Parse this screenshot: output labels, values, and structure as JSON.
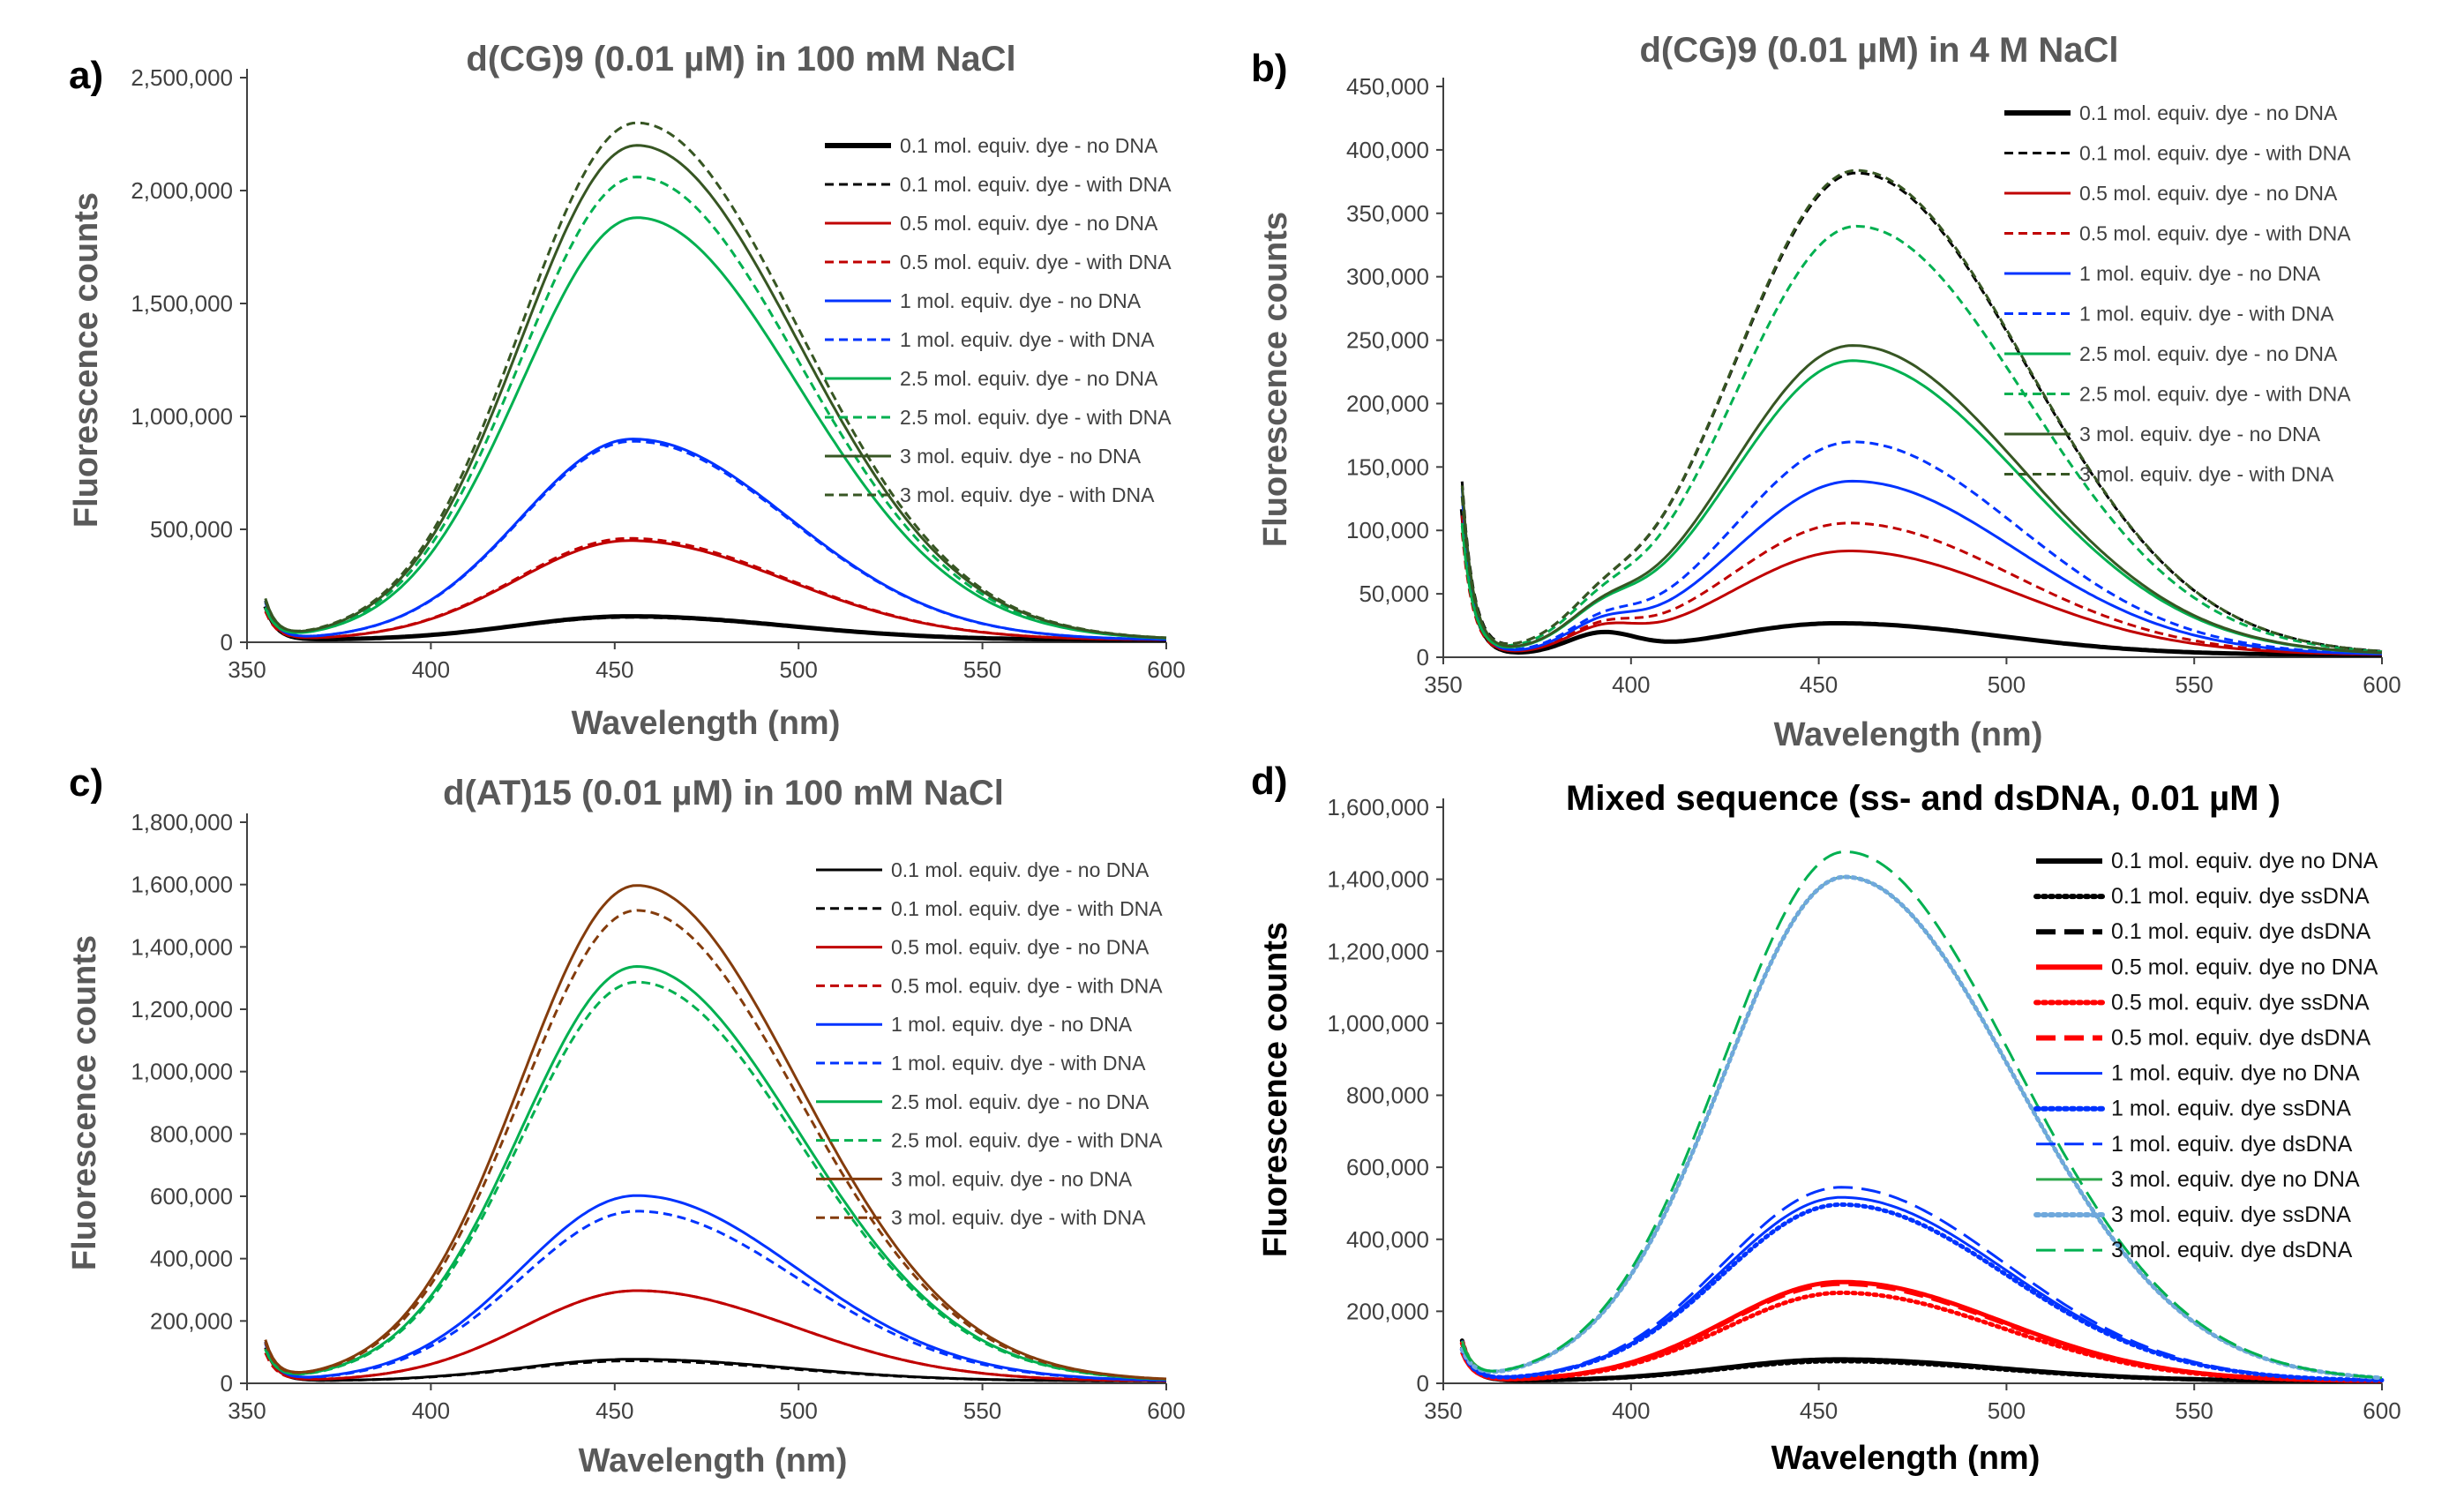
{
  "chart_data": [
    {
      "panel": "a)",
      "type": "line",
      "title": "d(CG)9 (0.01 µM) in 100 mM NaCl",
      "xlabel": "Wavelength (nm)",
      "ylabel": "Fluorescence counts",
      "xlim": [
        350,
        600
      ],
      "ylim": [
        0,
        2500000
      ],
      "xticks": [
        350,
        400,
        450,
        500,
        550,
        600
      ],
      "yticks": [
        0,
        500000,
        1000000,
        1500000,
        2000000,
        2500000
      ],
      "xtick_labels": [
        "350",
        "400",
        "450",
        "500",
        "550",
        "600"
      ],
      "ytick_labels": [
        "0",
        "500,000",
        "1,000,000",
        "1,500,000",
        "2,000,000",
        "2,500,000"
      ],
      "legend_position": "top-right",
      "title_color": "#595959",
      "label_color": "#595959",
      "series": [
        {
          "name": "0.1 mol. equiv. dye - no DNA",
          "color": "#000000",
          "dash": "solid",
          "width": "thick",
          "peak": 105000,
          "center": 454,
          "sigma": 36,
          "base": 0
        },
        {
          "name": "0.1 mol. equiv. dye - with DNA",
          "color": "#000000",
          "dash": "dashed",
          "width": "normal",
          "peak": 100000,
          "center": 454,
          "sigma": 36,
          "base": 0
        },
        {
          "name": "0.5 mol. equiv. dye - no DNA",
          "color": "#C00000",
          "dash": "solid",
          "width": "normal",
          "peak": 440000,
          "center": 454,
          "sigma": 36,
          "base": 0
        },
        {
          "name": "0.5 mol. equiv. dye - with DNA",
          "color": "#C00000",
          "dash": "dashed",
          "width": "normal",
          "peak": 450000,
          "center": 454,
          "sigma": 36,
          "base": 0
        },
        {
          "name": "1 mol. equiv. dye - no DNA",
          "color": "#0033FF",
          "dash": "solid",
          "width": "normal",
          "peak": 890000,
          "center": 455,
          "sigma": 36,
          "base": 0
        },
        {
          "name": "1 mol. equiv. dye - with DNA",
          "color": "#0033FF",
          "dash": "dashed",
          "width": "normal",
          "peak": 880000,
          "center": 455,
          "sigma": 36,
          "base": 0
        },
        {
          "name": "2.5 mol. equiv. dye - no DNA",
          "color": "#00B050",
          "dash": "solid",
          "width": "normal",
          "peak": 1870000,
          "center": 456,
          "sigma": 37,
          "base": 0
        },
        {
          "name": "2.5 mol. equiv. dye - with DNA",
          "color": "#00B050",
          "dash": "dashed",
          "width": "normal",
          "peak": 2050000,
          "center": 456,
          "sigma": 37,
          "base": 0
        },
        {
          "name": "3 mol. equiv. dye - no DNA",
          "color": "#375623",
          "dash": "solid",
          "width": "normal",
          "peak": 2190000,
          "center": 456,
          "sigma": 37,
          "base": 0
        },
        {
          "name": "3 mol. equiv. dye - with DNA",
          "color": "#375623",
          "dash": "dashed",
          "width": "normal",
          "peak": 2290000,
          "center": 456,
          "sigma": 37,
          "base": 0
        }
      ]
    },
    {
      "panel": "b)",
      "type": "line",
      "title": "d(CG)9 (0.01 µM) in 4 M NaCl",
      "xlabel": "Wavelength (nm)",
      "ylabel": "Fluorescence counts",
      "xlim": [
        350,
        600
      ],
      "ylim": [
        0,
        450000
      ],
      "xticks": [
        350,
        400,
        450,
        500,
        550,
        600
      ],
      "yticks": [
        0,
        50000,
        100000,
        150000,
        200000,
        250000,
        300000,
        350000,
        400000,
        450000
      ],
      "xtick_labels": [
        "350",
        "400",
        "450",
        "500",
        "550",
        "600"
      ],
      "ytick_labels": [
        "0",
        "50,000",
        "100,000",
        "150,000",
        "200,000",
        "250,000",
        "300,000",
        "350,000",
        "400,000",
        "450,000"
      ],
      "legend_position": "top-right",
      "title_color": "#595959",
      "label_color": "#595959",
      "series": [
        {
          "name": "0.1 mol. equiv. dye - no DNA",
          "color": "#000000",
          "dash": "solid",
          "width": "thick",
          "peak": 25000,
          "center": 455,
          "sigma": 36,
          "base": 15000
        },
        {
          "name": "0.1 mol. equiv. dye - with DNA",
          "color": "#000000",
          "dash": "dashed",
          "width": "normal",
          "peak": 380000,
          "center": 460,
          "sigma": 38,
          "base": 17000
        },
        {
          "name": "0.5 mol. equiv. dye - no DNA",
          "color": "#C00000",
          "dash": "solid",
          "width": "normal",
          "peak": 82000,
          "center": 458,
          "sigma": 37,
          "base": 15000
        },
        {
          "name": "0.5 mol. equiv. dye - with DNA",
          "color": "#C00000",
          "dash": "dashed",
          "width": "normal",
          "peak": 104000,
          "center": 458,
          "sigma": 37,
          "base": 15000
        },
        {
          "name": "1 mol. equiv. dye - no DNA",
          "color": "#0033FF",
          "dash": "solid",
          "width": "normal",
          "peak": 137000,
          "center": 459,
          "sigma": 37,
          "base": 16000
        },
        {
          "name": "1 mol. equiv. dye - with DNA",
          "color": "#0033FF",
          "dash": "dashed",
          "width": "normal",
          "peak": 168000,
          "center": 459,
          "sigma": 37,
          "base": 16000
        },
        {
          "name": "2.5 mol. equiv. dye - no DNA",
          "color": "#00B050",
          "dash": "solid",
          "width": "normal",
          "peak": 232000,
          "center": 459,
          "sigma": 38,
          "base": 17000
        },
        {
          "name": "2.5 mol. equiv. dye - with DNA",
          "color": "#00B050",
          "dash": "dashed",
          "width": "normal",
          "peak": 338000,
          "center": 460,
          "sigma": 38,
          "base": 17000
        },
        {
          "name": "3 mol. equiv. dye - no DNA",
          "color": "#375623",
          "dash": "solid",
          "width": "normal",
          "peak": 244000,
          "center": 459,
          "sigma": 38,
          "base": 17000
        },
        {
          "name": "3 mol. equiv. dye - with DNA",
          "color": "#375623",
          "dash": "dashed",
          "width": "normal",
          "peak": 382000,
          "center": 460,
          "sigma": 38,
          "base": 17000
        }
      ]
    },
    {
      "panel": "c)",
      "type": "line",
      "title": "d(AT)15 (0.01 µM) in 100 mM NaCl",
      "xlabel": "Wavelength (nm)",
      "ylabel": "Fluorescence counts",
      "xlim": [
        350,
        600
      ],
      "ylim": [
        0,
        1800000
      ],
      "xticks": [
        350,
        400,
        450,
        500,
        550,
        600
      ],
      "yticks": [
        0,
        200000,
        400000,
        600000,
        800000,
        1000000,
        1200000,
        1400000,
        1600000,
        1800000
      ],
      "xtick_labels": [
        "350",
        "400",
        "450",
        "500",
        "550",
        "600"
      ],
      "ytick_labels": [
        "0",
        "200,000",
        "400,000",
        "600,000",
        "800,000",
        "1,000,000",
        "1,200,000",
        "1,400,000",
        "1,600,000",
        "1,800,000"
      ],
      "legend_position": "top-right",
      "title_color": "#595959",
      "label_color": "#595959",
      "series": [
        {
          "name": "0.1 mol. equiv. dye - no DNA",
          "color": "#000000",
          "dash": "solid",
          "width": "normal",
          "peak": 70000,
          "center": 455,
          "sigma": 36,
          "base": 0
        },
        {
          "name": "0.1 mol. equiv. dye - with DNA",
          "color": "#000000",
          "dash": "dashed",
          "width": "normal",
          "peak": 65000,
          "center": 455,
          "sigma": 36,
          "base": 0
        },
        {
          "name": "0.5 mol. equiv. dye - no DNA",
          "color": "#C00000",
          "dash": "solid",
          "width": "normal",
          "peak": 290000,
          "center": 456,
          "sigma": 36,
          "base": 0
        },
        {
          "name": "0.5 mol. equiv. dye - with DNA",
          "color": "#C00000",
          "dash": "dashed",
          "width": "normal",
          "peak": 290000,
          "center": 456,
          "sigma": 36,
          "base": 0
        },
        {
          "name": "1 mol. equiv. dye - no DNA",
          "color": "#0033FF",
          "dash": "solid",
          "width": "normal",
          "peak": 595000,
          "center": 456,
          "sigma": 37,
          "base": 0
        },
        {
          "name": "1 mol. equiv. dye - with DNA",
          "color": "#0033FF",
          "dash": "dashed",
          "width": "normal",
          "peak": 545000,
          "center": 456,
          "sigma": 37,
          "base": 0
        },
        {
          "name": "2.5 mol. equiv. dye - no DNA",
          "color": "#00B050",
          "dash": "solid",
          "width": "normal",
          "peak": 1330000,
          "center": 456,
          "sigma": 37,
          "base": 0
        },
        {
          "name": "2.5 mol. equiv. dye - with DNA",
          "color": "#00B050",
          "dash": "dashed",
          "width": "normal",
          "peak": 1280000,
          "center": 456,
          "sigma": 37,
          "base": 0
        },
        {
          "name": "3 mol. equiv. dye - no DNA",
          "color": "#843C0C",
          "dash": "solid",
          "width": "normal",
          "peak": 1590000,
          "center": 456,
          "sigma": 37,
          "base": 0
        },
        {
          "name": "3 mol. equiv. dye - with DNA",
          "color": "#843C0C",
          "dash": "dashed",
          "width": "normal",
          "peak": 1510000,
          "center": 456,
          "sigma": 37,
          "base": 0
        }
      ]
    },
    {
      "panel": "d)",
      "type": "line",
      "title": "Mixed sequence (ss- and dsDNA, 0.01 µM )",
      "xlabel": "Wavelength (nm)",
      "ylabel": "Fluorescence counts",
      "xlim": [
        350,
        600
      ],
      "ylim": [
        0,
        1600000
      ],
      "xticks": [
        350,
        400,
        450,
        500,
        550,
        600
      ],
      "yticks": [
        0,
        200000,
        400000,
        600000,
        800000,
        1000000,
        1200000,
        1400000,
        1600000
      ],
      "xtick_labels": [
        "350",
        "400",
        "450",
        "500",
        "550",
        "600"
      ],
      "ytick_labels": [
        "0",
        "200,000",
        "400,000",
        "600,000",
        "800,000",
        "1,000,000",
        "1,200,000",
        "1,400,000",
        "1,600,000"
      ],
      "legend_position": "top-right",
      "title_color": "#000000",
      "label_color": "#000000",
      "series": [
        {
          "name": "0.1 mol. equiv. dye no DNA",
          "color": "#000000",
          "dash": "solid",
          "width": "thick",
          "peak": 60000,
          "center": 455,
          "sigma": 36,
          "base": 0
        },
        {
          "name": "0.1 mol. equiv. dye ssDNA",
          "color": "#000000",
          "dash": "dotted",
          "width": "thick",
          "peak": 55000,
          "center": 455,
          "sigma": 36,
          "base": 0
        },
        {
          "name": "0.1 mol. equiv. dye dsDNA",
          "color": "#000000",
          "dash": "longdash",
          "width": "thick",
          "peak": 58000,
          "center": 455,
          "sigma": 36,
          "base": 0
        },
        {
          "name": "0.5 mol. equiv. dye no DNA",
          "color": "#FF0000",
          "dash": "solid",
          "width": "thick",
          "peak": 275000,
          "center": 456,
          "sigma": 36,
          "base": 0
        },
        {
          "name": "0.5 mol. equiv. dye ssDNA",
          "color": "#FF0000",
          "dash": "dotted",
          "width": "thick",
          "peak": 245000,
          "center": 456,
          "sigma": 36,
          "base": 0
        },
        {
          "name": "0.5 mol. equiv. dye dsDNA",
          "color": "#FF0000",
          "dash": "longdash",
          "width": "thick",
          "peak": 270000,
          "center": 456,
          "sigma": 36,
          "base": 0
        },
        {
          "name": "1 mol. equiv. dye no DNA",
          "color": "#0033FF",
          "dash": "solid",
          "width": "normal",
          "peak": 510000,
          "center": 456,
          "sigma": 37,
          "base": 0
        },
        {
          "name": "1 mol. equiv. dye ssDNA",
          "color": "#0033FF",
          "dash": "dotted",
          "width": "thick",
          "peak": 490000,
          "center": 456,
          "sigma": 37,
          "base": 0
        },
        {
          "name": "1 mol. equiv. dye dsDNA",
          "color": "#0033FF",
          "dash": "longdash",
          "width": "normal",
          "peak": 538000,
          "center": 456,
          "sigma": 37,
          "base": 0
        },
        {
          "name": "3 mol. equiv. dye no DNA",
          "color": "#2BA84A",
          "dash": "solid",
          "width": "normal",
          "peak": 1400000,
          "center": 457,
          "sigma": 38,
          "base": 0
        },
        {
          "name": "3 mol. equiv. dye ssDNA",
          "color": "#6FA8DC",
          "dash": "dotted",
          "width": "thick",
          "peak": 1400000,
          "center": 457,
          "sigma": 38,
          "base": 0
        },
        {
          "name": "3 mol. equiv. dye dsDNA",
          "color": "#00B050",
          "dash": "longdash",
          "width": "normal",
          "peak": 1470000,
          "center": 457,
          "sigma": 38,
          "base": 0
        }
      ]
    }
  ]
}
